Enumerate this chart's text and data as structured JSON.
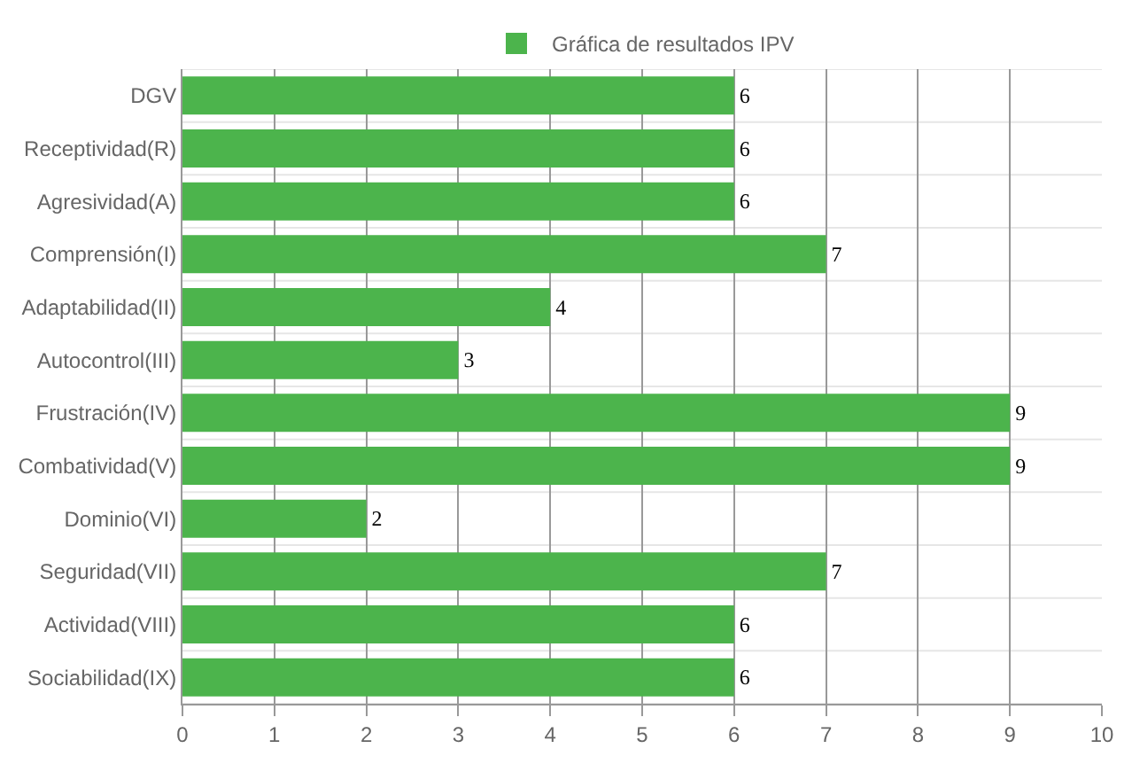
{
  "chart_data": {
    "type": "bar",
    "orientation": "horizontal",
    "categories": [
      "DGV",
      "Receptividad(R)",
      "Agresividad(A)",
      "Comprensión(I)",
      "Adaptabilidad(II)",
      "Autocontrol(III)",
      "Frustración(IV)",
      "Combatividad(V)",
      "Dominio(VI)",
      "Seguridad(VII)",
      "Actividad(VIII)",
      "Sociabilidad(IX)"
    ],
    "series": [
      {
        "name": "Gráfica de resultados IPV",
        "color": "#4cb44c",
        "values": [
          6,
          6,
          6,
          7,
          4,
          3,
          9,
          9,
          2,
          7,
          6,
          6
        ]
      }
    ],
    "xlim": [
      0,
      10
    ],
    "xticks": [
      0,
      1,
      2,
      3,
      4,
      5,
      6,
      7,
      8,
      9,
      10
    ],
    "grid": true,
    "legend": "top",
    "data_labels": true
  }
}
